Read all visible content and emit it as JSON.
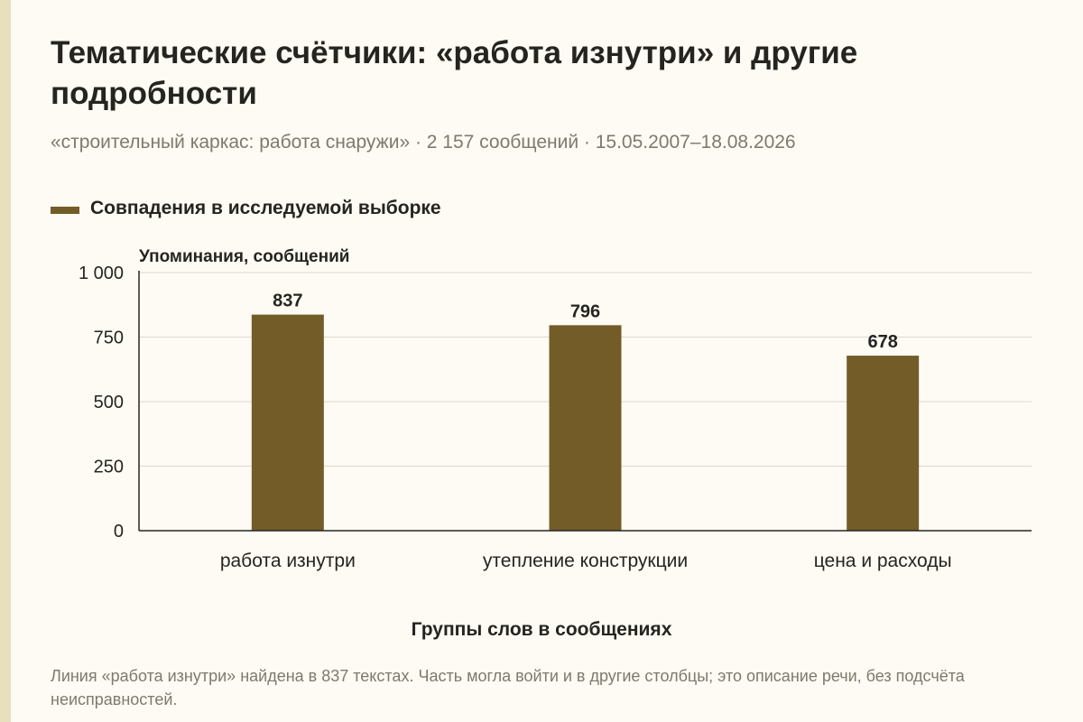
{
  "header": {
    "title": "Тематические счётчики: «работа изнутри» и другие подробности",
    "subtitle": "«строительный каркас: работа снаружи» · 2 157 сообщений · 15.05.2007–18.08.2026"
  },
  "legend": {
    "label": "Совпадения в исследуемой выборке"
  },
  "footnote": "Линия «работа изнутри» найдена в 837 текстах. Часть могла войти и в другие столбцы; это описание речи, без подсчёта неисправностей.",
  "colors": {
    "bar": "#735c28",
    "grid": "#dcd9cf",
    "axis": "#262420",
    "background": "#fdfbf3"
  },
  "chart_data": {
    "type": "bar",
    "categories": [
      "работа изнутри",
      "утепление конструкции",
      "цена и расходы"
    ],
    "series": [
      {
        "name": "Совпадения в исследуемой выборке",
        "values": [
          837,
          796,
          678
        ]
      }
    ],
    "data_labels": [
      "837",
      "796",
      "678"
    ],
    "ylabel": "Упоминания, сообщений",
    "xlabel": "Группы слов в сообщениях",
    "ylim": [
      0,
      1000
    ],
    "yticks": [
      0,
      250,
      500,
      750,
      1000
    ],
    "ytick_labels": [
      "0",
      "250",
      "500",
      "750",
      "1 000"
    ],
    "grid": true,
    "legend_position": "top-left"
  }
}
